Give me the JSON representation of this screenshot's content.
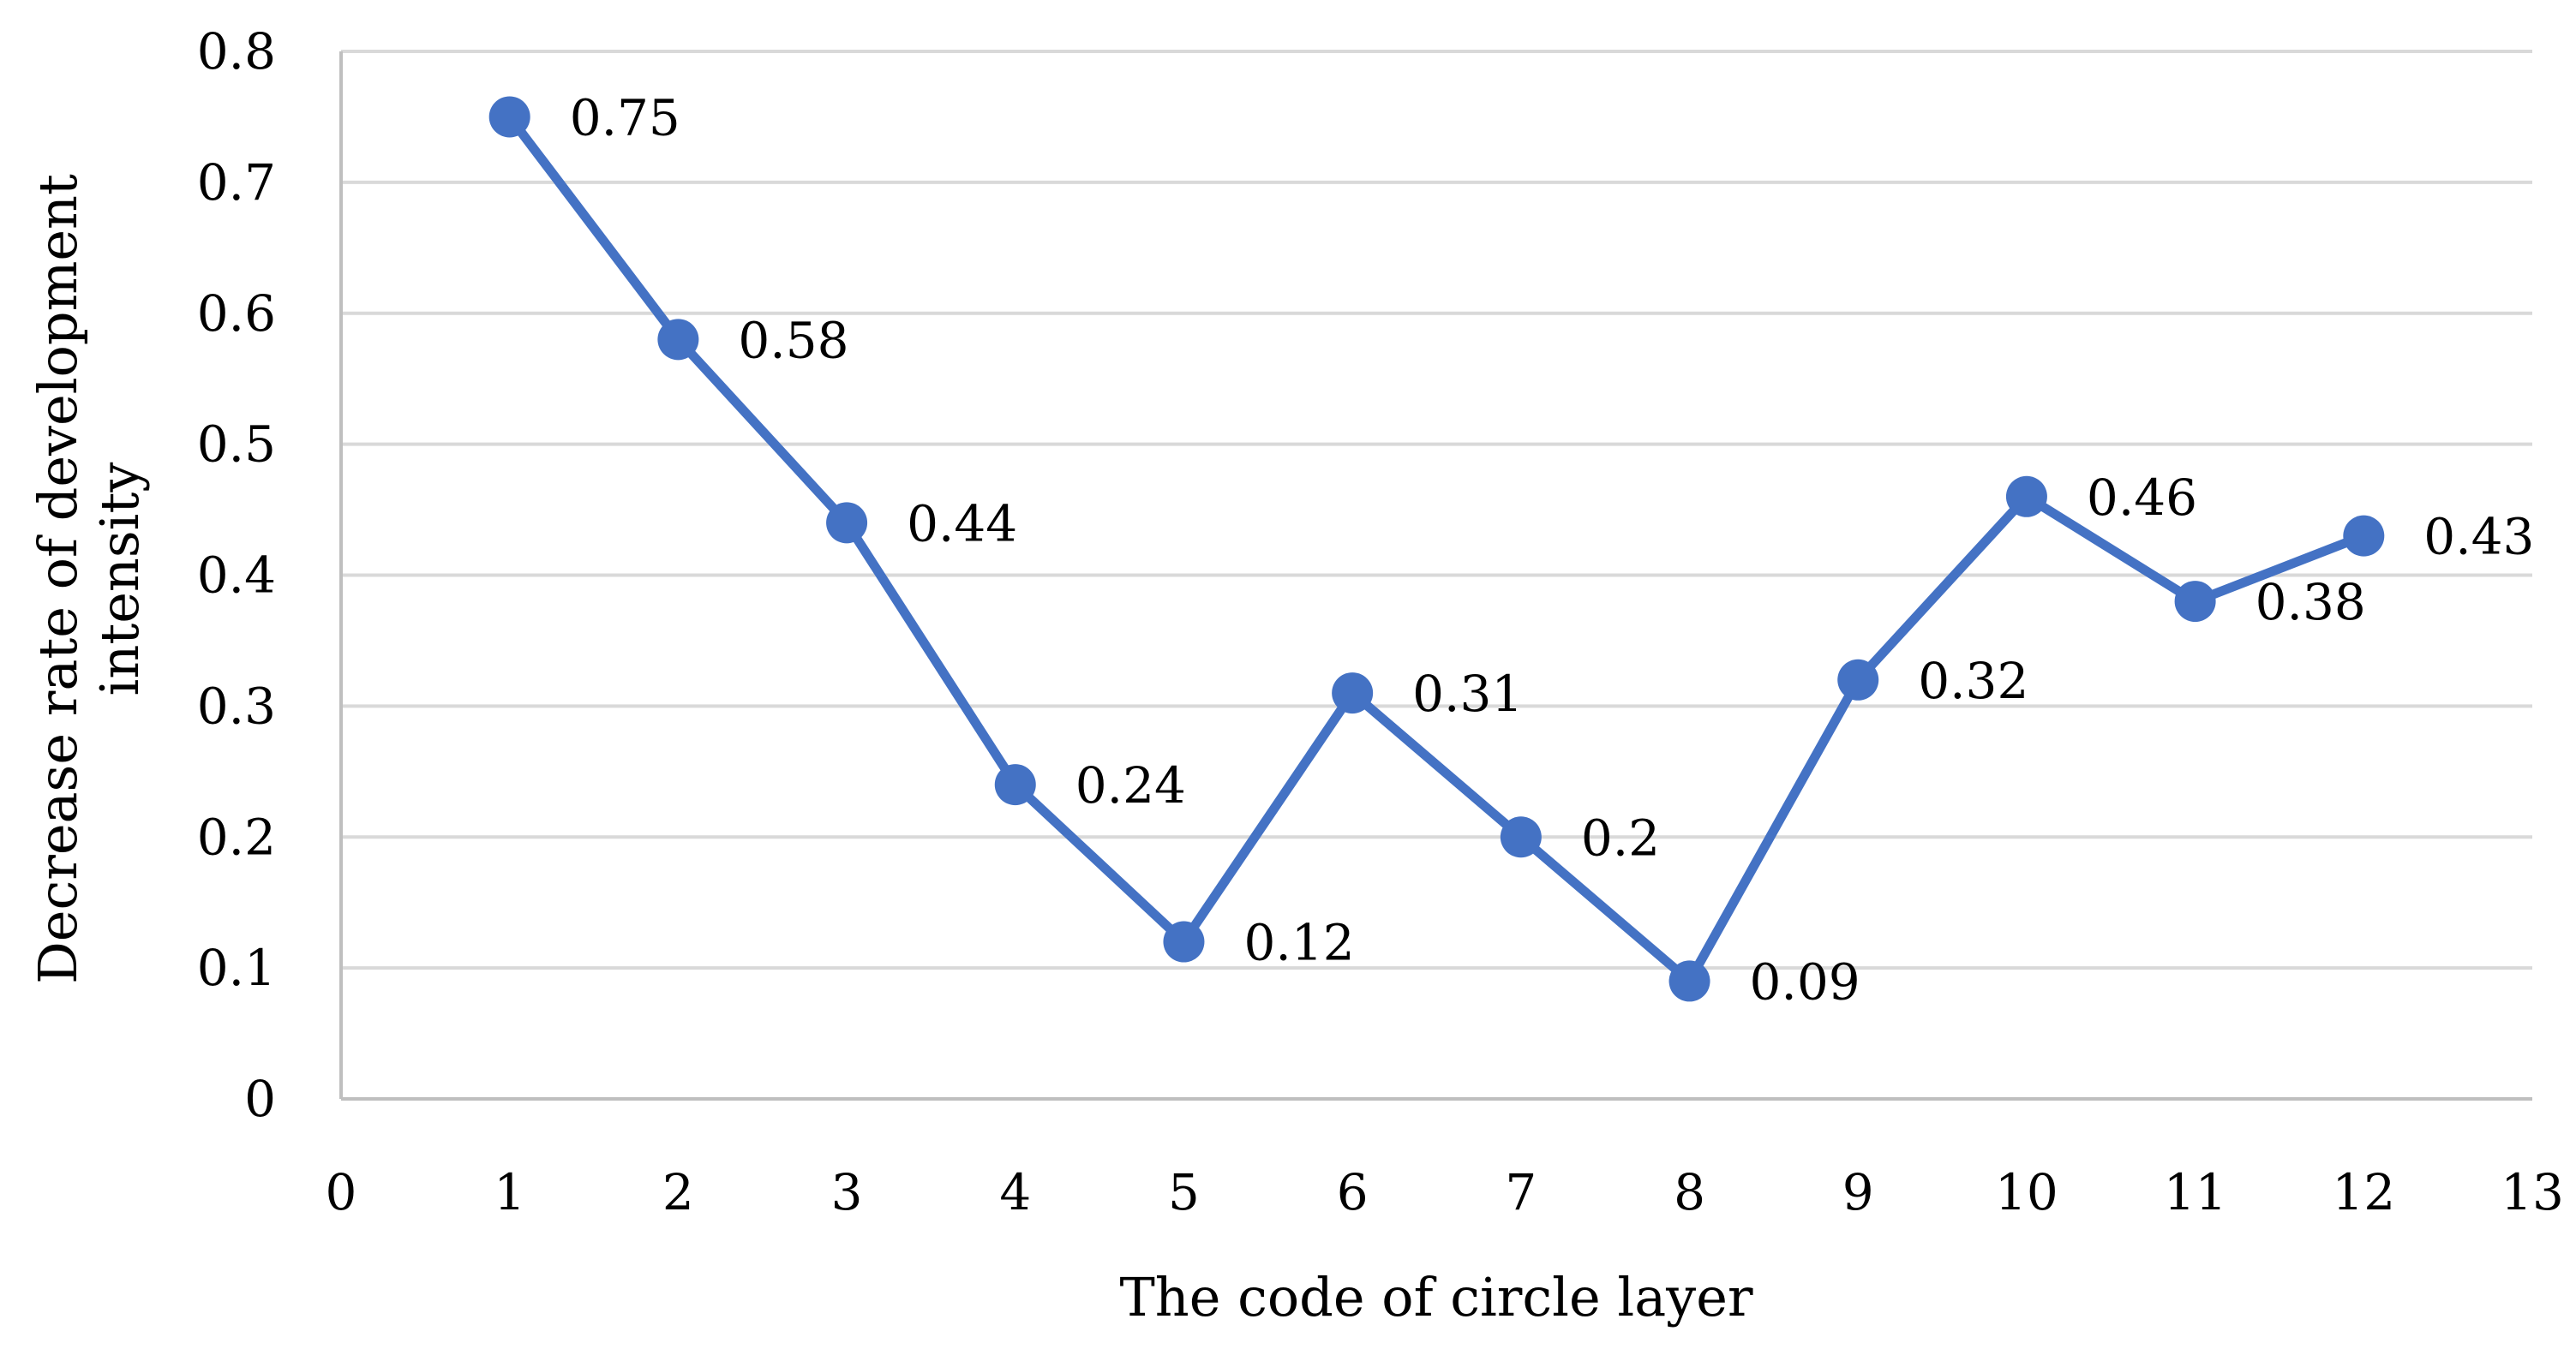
{
  "chart_data": {
    "type": "line",
    "title": "",
    "xlabel": "The code of circle layer",
    "ylabel_lines": [
      "Decrease rate of development",
      "intensity"
    ],
    "xlim": [
      0,
      13
    ],
    "ylim": [
      0,
      0.8
    ],
    "x_ticks": [
      "0",
      "1",
      "2",
      "3",
      "4",
      "5",
      "6",
      "7",
      "8",
      "9",
      "10",
      "11",
      "12",
      "13"
    ],
    "y_ticks": [
      "0",
      "0.1",
      "0.2",
      "0.3",
      "0.4",
      "0.5",
      "0.6",
      "0.7",
      "0.8"
    ],
    "grid": true,
    "legend": "none",
    "series": [
      {
        "x": [
          1,
          2,
          3,
          4,
          5,
          6,
          7,
          8,
          9,
          10,
          11,
          12
        ],
        "values": [
          0.75,
          0.58,
          0.44,
          0.24,
          0.12,
          0.31,
          0.2,
          0.09,
          0.32,
          0.46,
          0.38,
          0.43
        ],
        "data_labels": [
          "0.75",
          "0.58",
          "0.44",
          "0.24",
          "0.12",
          "0.31",
          "0.2",
          "0.09",
          "0.32",
          "0.46",
          "0.38",
          "0.43"
        ]
      }
    ]
  },
  "colors": {
    "series_line": "#4472c4",
    "grid": "#d9d9d9",
    "axis": "#bfbfbf",
    "text": "#000000"
  }
}
